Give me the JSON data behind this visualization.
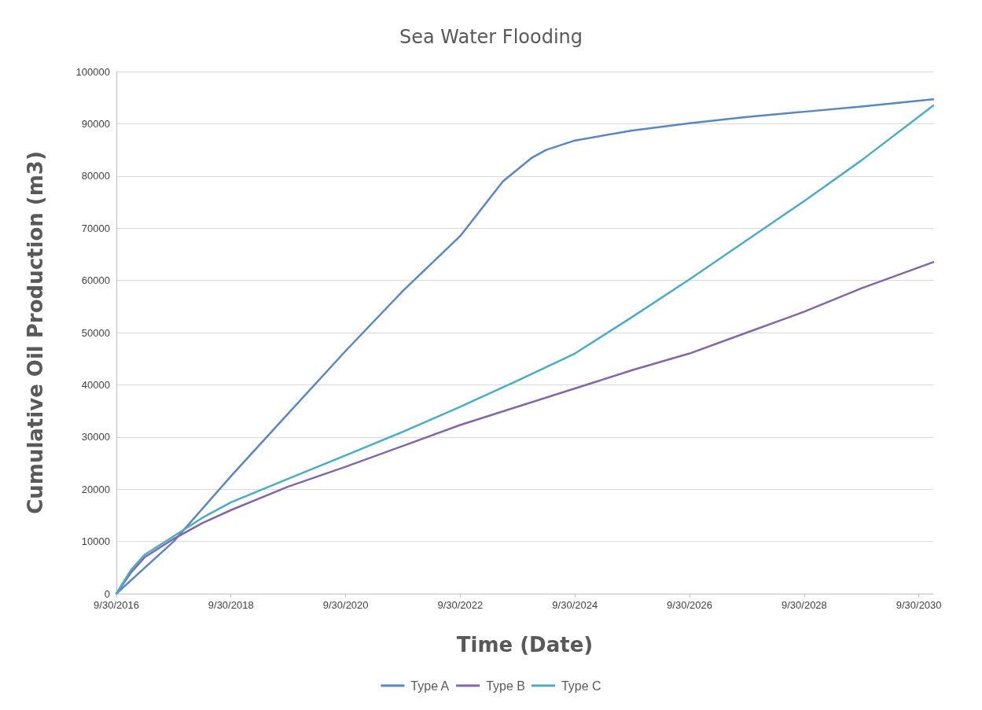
{
  "chart_data": {
    "type": "line",
    "title": "Sea Water Flooding",
    "xlabel": "Time (Date)",
    "ylabel": "Cumulative Oil Production (m3)",
    "xlim": [
      "2016-09-30",
      "2030-12-31"
    ],
    "xticks": [
      {
        "value": "2016-09-30",
        "label": "9/30/2016"
      },
      {
        "value": "2018-09-30",
        "label": "9/30/2018"
      },
      {
        "value": "2020-09-30",
        "label": "9/30/2020"
      },
      {
        "value": "2022-09-30",
        "label": "9/30/2022"
      },
      {
        "value": "2024-09-30",
        "label": "9/30/2024"
      },
      {
        "value": "2026-09-30",
        "label": "9/30/2026"
      },
      {
        "value": "2028-09-30",
        "label": "9/30/2028"
      },
      {
        "value": "2030-09-30",
        "label": "9/30/2030"
      }
    ],
    "ylim": [
      0,
      100000
    ],
    "yticks": [
      0,
      10000,
      20000,
      30000,
      40000,
      50000,
      60000,
      70000,
      80000,
      90000,
      100000
    ],
    "grid": "y",
    "legend": "bottom",
    "marker": "none",
    "line_style": "solid",
    "series": [
      {
        "name": "Type A",
        "color": "#5a86c5",
        "x": [
          "2016-09-30",
          "2017-03-31",
          "2017-09-30",
          "2018-09-30",
          "2019-09-30",
          "2020-09-30",
          "2021-09-30",
          "2022-09-30",
          "2023-06-30",
          "2023-12-31",
          "2024-03-31",
          "2024-09-30",
          "2025-09-30",
          "2026-09-30",
          "2027-09-30",
          "2028-09-30",
          "2029-09-30",
          "2030-12-31"
        ],
        "values": [
          0,
          5000,
          10000,
          22500,
          34500,
          46500,
          58000,
          68500,
          79000,
          83500,
          85000,
          86800,
          88700,
          90100,
          91300,
          92300,
          93300,
          94700
        ]
      },
      {
        "name": "Type B",
        "color": "#8466a8",
        "x": [
          "2016-09-30",
          "2016-12-31",
          "2017-03-31",
          "2017-09-30",
          "2018-03-31",
          "2018-09-30",
          "2019-09-30",
          "2020-09-30",
          "2021-09-30",
          "2022-09-30",
          "2023-09-30",
          "2024-09-30",
          "2025-09-30",
          "2026-09-30",
          "2027-09-30",
          "2028-09-30",
          "2029-09-30",
          "2030-12-31"
        ],
        "values": [
          0,
          4000,
          7000,
          10500,
          13500,
          16000,
          20500,
          24300,
          28300,
          32300,
          35800,
          39300,
          42800,
          46000,
          50000,
          54000,
          58500,
          63500
        ]
      },
      {
        "name": "Type C",
        "color": "#4bacc6",
        "x": [
          "2016-09-30",
          "2016-12-31",
          "2017-03-31",
          "2017-09-30",
          "2018-03-31",
          "2018-09-30",
          "2019-09-30",
          "2020-09-30",
          "2021-09-30",
          "2022-09-30",
          "2023-09-30",
          "2024-09-30",
          "2025-09-30",
          "2026-09-30",
          "2027-09-30",
          "2028-09-30",
          "2029-09-30",
          "2030-12-31"
        ],
        "values": [
          0,
          4500,
          7500,
          11000,
          14500,
          17500,
          22000,
          26500,
          31000,
          35800,
          40800,
          46000,
          53000,
          60200,
          67700,
          75200,
          83000,
          93500
        ]
      }
    ]
  }
}
